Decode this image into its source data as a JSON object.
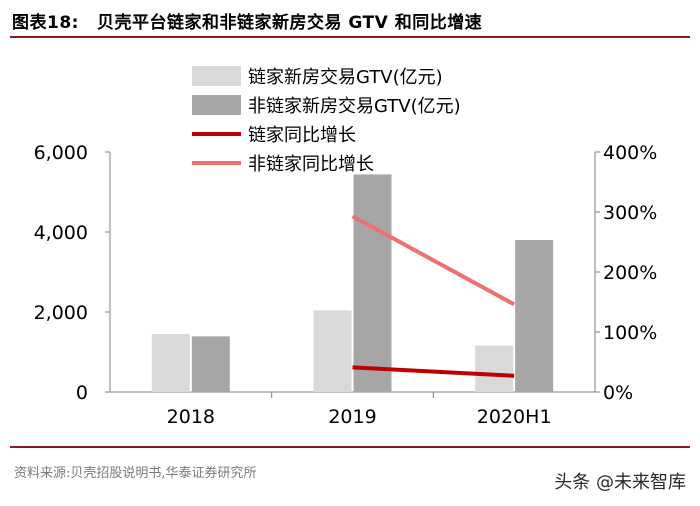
{
  "header": {
    "figure_label": "图表18:",
    "title": "贝壳平台链家和非链家新房交易 GTV 和同比增速"
  },
  "footer": {
    "source": "资料来源:贝壳招股说明书,华泰证券研究所",
    "watermark": "头条 @未来智库"
  },
  "colors": {
    "lianjia_bar": "#d9d9d9",
    "non_lianjia_bar": "#a6a6a6",
    "lianjia_line": "#c00000",
    "non_lianjia_line": "#f07070",
    "accent_rule": "#8b1a1a"
  },
  "chart_data": {
    "type": "bar",
    "categories": [
      "2018",
      "2019",
      "2020H1"
    ],
    "series": [
      {
        "name": "链家新房交易GTV(亿元)",
        "kind": "bar",
        "axis": "left",
        "color_key": "lianjia_bar",
        "values": [
          1450,
          2040,
          1160
        ]
      },
      {
        "name": "非链家新房交易GTV(亿元)",
        "kind": "bar",
        "axis": "left",
        "color_key": "non_lianjia_bar",
        "values": [
          1390,
          5440,
          3800
        ]
      },
      {
        "name": "链家同比增长",
        "kind": "line",
        "axis": "right",
        "color_key": "lianjia_line",
        "values": [
          null,
          41,
          27
        ]
      },
      {
        "name": "非链家同比增长",
        "kind": "line",
        "axis": "right",
        "color_key": "non_lianjia_line",
        "values": [
          null,
          293,
          146
        ]
      }
    ],
    "left_axis": {
      "min": 0,
      "max": 6000,
      "ticks": [
        "0",
        "2,000",
        "4,000",
        "6,000"
      ],
      "tick_values": [
        0,
        2000,
        4000,
        6000
      ]
    },
    "right_axis": {
      "min": 0,
      "max": 400,
      "ticks": [
        "0%",
        "100%",
        "200%",
        "300%",
        "400%"
      ],
      "tick_values": [
        0,
        100,
        200,
        300,
        400
      ]
    },
    "legend_position": "top-center",
    "grid": false
  }
}
